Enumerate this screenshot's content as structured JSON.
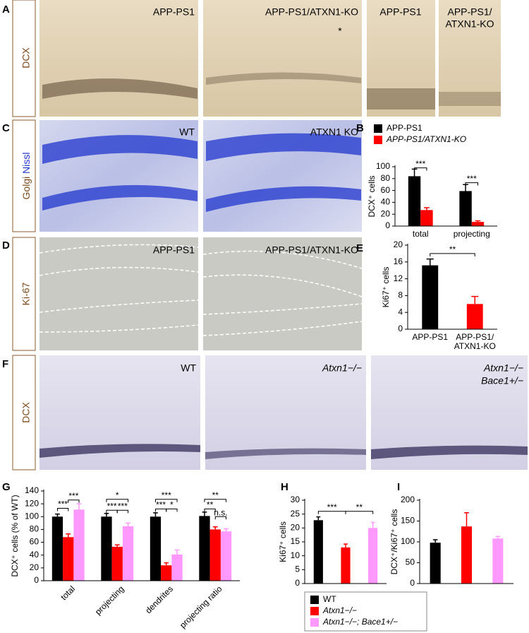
{
  "figure": {
    "panel_a": {
      "letter": "A",
      "stain": "DCX",
      "images": [
        "APP-PS1",
        "APP-PS1/ATXN1-KO",
        "APP-PS1",
        [
          "APP-PS1/",
          "ATXN1-KO"
        ]
      ],
      "asterisk": "*"
    },
    "panel_c": {
      "letter": "C",
      "stain": [
        "Golgi",
        "Nissl"
      ],
      "images": [
        "WT",
        "ATXN1 KO"
      ]
    },
    "panel_d": {
      "letter": "D",
      "stain": "Ki-67",
      "images": [
        "APP-PS1",
        "APP-PS1/ATXN1-KO"
      ]
    },
    "panel_f": {
      "letter": "F",
      "stain": "DCX",
      "images": [
        "WT",
        "Atxn1−/−",
        [
          "Atxn1−/−",
          "Bace1+/−"
        ]
      ]
    }
  },
  "chart_data": [
    {
      "type": "bar",
      "letter": "B",
      "y_label": "DCX⁺ cells",
      "categories": [
        "total",
        "projecting"
      ],
      "series": [
        {
          "name": "APP-PS1",
          "color": "#000000",
          "values": [
            84,
            59
          ],
          "errors": [
            12,
            11
          ]
        },
        {
          "name": "APP-PS1/ATXN1-KO",
          "color": "#ff0000",
          "values": [
            27,
            7
          ],
          "errors": [
            4,
            2
          ]
        }
      ],
      "ylim": [
        0,
        100
      ],
      "yticks": [
        0,
        20,
        40,
        60,
        80,
        100
      ],
      "annotations": [
        "***",
        "***"
      ]
    },
    {
      "type": "bar",
      "letter": "E",
      "y_label": "Ki67⁺ cells",
      "categories": [
        "APP-PS1",
        "APP-PS1/ATXN1-KO"
      ],
      "values": [
        15.2,
        6
      ],
      "errors": [
        1.5,
        1.8
      ],
      "colors": [
        "#000000",
        "#ff0000"
      ],
      "ylim": [
        0,
        20
      ],
      "yticks": [
        0,
        4,
        8,
        12,
        16,
        20
      ],
      "annotations": [
        "**"
      ]
    },
    {
      "type": "bar",
      "letter": "G",
      "y_label": "DCX⁺ cells (% of WT)",
      "categories": [
        "total",
        "projecting",
        "dendrites",
        "projecting ratio"
      ],
      "series": [
        {
          "name": "WT",
          "color": "#000000",
          "values": [
            100,
            100,
            100,
            101
          ],
          "errors": [
            4,
            5,
            6,
            6
          ]
        },
        {
          "name": "Atxn1−/−",
          "color": "#ff0000",
          "values": [
            68,
            53,
            24,
            80
          ],
          "errors": [
            5,
            3,
            4,
            4
          ]
        },
        {
          "name": "Atxn1−/−; Bace1+/−",
          "color": "#ff99ff",
          "values": [
            111,
            85,
            41,
            77
          ],
          "errors": [
            9,
            5,
            7,
            4
          ]
        }
      ],
      "ylim": [
        0,
        140
      ],
      "yticks": [
        0,
        20,
        40,
        60,
        80,
        100,
        120,
        140
      ],
      "annotations": [
        "***",
        "***",
        "*",
        "***",
        "***",
        "***",
        "***",
        "*",
        "**",
        "**",
        "n.s."
      ]
    },
    {
      "type": "bar",
      "letter": "H",
      "y_label": "Ki67⁺ cells",
      "categories": [
        null,
        null,
        null
      ],
      "values": [
        22.8,
        13,
        20
      ],
      "errors": [
        1.2,
        1.2,
        2
      ],
      "colors": [
        "#000000",
        "#ff0000",
        "#ff99ff"
      ],
      "ylim": [
        0,
        30
      ],
      "yticks": [
        0,
        5,
        10,
        15,
        20,
        25,
        30
      ],
      "annotations": [
        "***",
        "**"
      ]
    },
    {
      "type": "bar",
      "letter": "I",
      "y_label": "DCX⁺/Ki67⁺ cells",
      "categories": [
        null,
        null,
        null
      ],
      "values": [
        98,
        137,
        108
      ],
      "errors": [
        7,
        33,
        5
      ],
      "colors": [
        "#000000",
        "#ff0000",
        "#ff99ff"
      ],
      "ylim": [
        0,
        200
      ],
      "yticks": [
        0,
        50,
        100,
        150,
        200
      ]
    }
  ]
}
